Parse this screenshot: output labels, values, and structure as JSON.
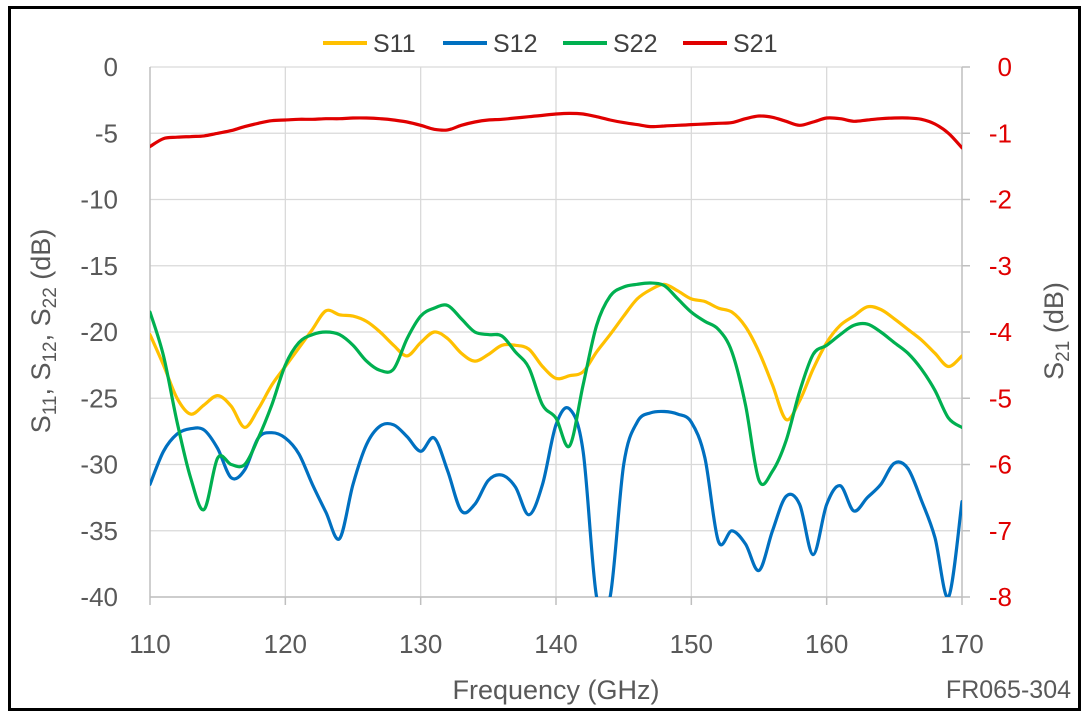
{
  "chart_data": {
    "type": "line",
    "xlabel": "Frequency (GHz)",
    "ylabel_left": {
      "base": "S",
      "parts": [
        [
          "11",
          ", S"
        ],
        [
          "12",
          ", S"
        ],
        [
          "22",
          " (dB)"
        ]
      ]
    },
    "ylabel_right": {
      "base": "S",
      "sub": "21",
      "suffix": " (dB)"
    },
    "xlim": [
      110,
      170
    ],
    "ylim_left": [
      -40,
      0
    ],
    "ylim_right": [
      -8,
      0
    ],
    "x_ticks": [
      110,
      120,
      130,
      140,
      150,
      160,
      170
    ],
    "y_ticks_left": [
      0,
      -5,
      -10,
      -15,
      -20,
      -25,
      -30,
      -35,
      -40
    ],
    "y_ticks_right": [
      0,
      -1,
      -2,
      -3,
      -4,
      -5,
      -6,
      -7,
      -8
    ],
    "grid": true,
    "legend_position": "top",
    "annotation": "FR065-304",
    "colors": {
      "S11": "#ffc000",
      "S12": "#0070c0",
      "S22": "#00b050",
      "S21": "#e00000",
      "right_axis": "#e00000",
      "text": "#595959"
    },
    "series": [
      {
        "name": "S11",
        "axis": "left",
        "x": [
          110,
          111,
          112,
          113,
          114,
          115,
          116,
          117,
          118,
          119,
          120,
          121,
          122,
          123,
          124,
          125,
          126,
          127,
          128,
          129,
          130,
          131,
          132,
          133,
          134,
          135,
          136,
          137,
          138,
          139,
          140,
          141,
          142,
          143,
          144,
          145,
          146,
          147,
          148,
          149,
          150,
          151,
          152,
          153,
          154,
          155,
          156,
          157,
          158,
          159,
          160,
          161,
          162,
          163,
          164,
          165,
          166,
          167,
          168,
          169,
          170
        ],
        "y": [
          -20.2,
          -22.5,
          -25,
          -26.2,
          -25.5,
          -24.8,
          -25.6,
          -27.2,
          -25.8,
          -24,
          -22.6,
          -21.2,
          -19.8,
          -18.4,
          -18.7,
          -18.8,
          -19.2,
          -20,
          -21,
          -21.8,
          -20.8,
          -20,
          -20.5,
          -21.6,
          -22.2,
          -21.7,
          -21,
          -21,
          -21.3,
          -22.6,
          -23.5,
          -23.3,
          -23,
          -21.5,
          -20.2,
          -18.8,
          -17.5,
          -16.8,
          -16.4,
          -16.9,
          -17.5,
          -17.7,
          -18.2,
          -18.5,
          -19.6,
          -21.5,
          -24,
          -26.6,
          -25.2,
          -22.8,
          -20.8,
          -19.5,
          -18.8,
          -18.1,
          -18.3,
          -19,
          -19.8,
          -20.6,
          -21.6,
          -22.6,
          -21.8
        ]
      },
      {
        "name": "S12",
        "axis": "left",
        "x": [
          110,
          111,
          112,
          113,
          114,
          115,
          116,
          117,
          118,
          119,
          120,
          121,
          122,
          123,
          124,
          125,
          126,
          127,
          128,
          129,
          130,
          131,
          132,
          133,
          134,
          135,
          136,
          137,
          138,
          139,
          140,
          141,
          142,
          143,
          144,
          145,
          146,
          147,
          148,
          149,
          150,
          151,
          152,
          153,
          154,
          155,
          156,
          157,
          158,
          159,
          160,
          161,
          162,
          163,
          164,
          165,
          166,
          167,
          168,
          169,
          170
        ],
        "y": [
          -31.5,
          -29,
          -27.7,
          -27.3,
          -27.4,
          -28.8,
          -31,
          -30.4,
          -28,
          -27.6,
          -28,
          -29.2,
          -31.5,
          -33.6,
          -35.6,
          -31.5,
          -28.5,
          -27.1,
          -27,
          -27.9,
          -29,
          -28,
          -30.5,
          -33.5,
          -33,
          -31.2,
          -30.8,
          -31.7,
          -33.8,
          -31.5,
          -27,
          -25.8,
          -29,
          -40,
          -40,
          -30,
          -26.8,
          -26.1,
          -26,
          -26.2,
          -26.8,
          -29.5,
          -35.8,
          -35,
          -36,
          -38,
          -35,
          -32.4,
          -33,
          -36.8,
          -33,
          -31.6,
          -33.5,
          -32.5,
          -31.5,
          -29.9,
          -30.3,
          -32.7,
          -35.5,
          -40,
          -32.8
        ]
      },
      {
        "name": "S22",
        "axis": "left",
        "x": [
          110,
          111,
          112,
          113,
          114,
          115,
          116,
          117,
          118,
          119,
          120,
          121,
          122,
          123,
          124,
          125,
          126,
          127,
          128,
          129,
          130,
          131,
          132,
          133,
          134,
          135,
          136,
          137,
          138,
          139,
          140,
          141,
          142,
          143,
          144,
          145,
          146,
          147,
          148,
          149,
          150,
          151,
          152,
          153,
          154,
          155,
          156,
          157,
          158,
          159,
          160,
          161,
          162,
          163,
          164,
          165,
          166,
          167,
          168,
          169,
          170
        ],
        "y": [
          -18.5,
          -21.8,
          -26.8,
          -31,
          -33.4,
          -29.5,
          -30,
          -30,
          -28,
          -25.5,
          -22.5,
          -20.8,
          -20.2,
          -20,
          -20.2,
          -21,
          -22.2,
          -22.9,
          -22.8,
          -20.5,
          -18.8,
          -18.2,
          -18,
          -19,
          -20,
          -20.2,
          -20.3,
          -21.5,
          -22.7,
          -25.5,
          -26.5,
          -28.6,
          -24,
          -19.5,
          -17.3,
          -16.6,
          -16.4,
          -16.3,
          -16.5,
          -17.5,
          -18.5,
          -19.2,
          -19.8,
          -21.5,
          -25.5,
          -31.2,
          -30.5,
          -28.2,
          -24.5,
          -21.7,
          -21,
          -20.2,
          -19.5,
          -19.4,
          -20,
          -20.8,
          -21.6,
          -22.8,
          -24.4,
          -26.5,
          -27.2
        ]
      },
      {
        "name": "S21",
        "axis": "right",
        "x": [
          110,
          111,
          112,
          113,
          114,
          115,
          116,
          117,
          118,
          119,
          120,
          121,
          122,
          123,
          124,
          125,
          126,
          127,
          128,
          129,
          130,
          131,
          132,
          133,
          134,
          135,
          136,
          137,
          138,
          139,
          140,
          141,
          142,
          143,
          144,
          145,
          146,
          147,
          148,
          149,
          150,
          151,
          152,
          153,
          154,
          155,
          156,
          157,
          158,
          159,
          160,
          161,
          162,
          163,
          164,
          165,
          166,
          167,
          168,
          169,
          170
        ],
        "y": [
          -1.2,
          -1.08,
          -1.06,
          -1.05,
          -1.04,
          -1.0,
          -0.96,
          -0.9,
          -0.85,
          -0.81,
          -0.8,
          -0.79,
          -0.79,
          -0.78,
          -0.78,
          -0.77,
          -0.77,
          -0.78,
          -0.8,
          -0.83,
          -0.88,
          -0.94,
          -0.95,
          -0.88,
          -0.83,
          -0.8,
          -0.79,
          -0.77,
          -0.75,
          -0.73,
          -0.71,
          -0.7,
          -0.71,
          -0.75,
          -0.8,
          -0.84,
          -0.87,
          -0.9,
          -0.89,
          -0.88,
          -0.87,
          -0.86,
          -0.85,
          -0.84,
          -0.78,
          -0.74,
          -0.76,
          -0.82,
          -0.88,
          -0.83,
          -0.77,
          -0.78,
          -0.82,
          -0.8,
          -0.78,
          -0.77,
          -0.77,
          -0.79,
          -0.86,
          -1.0,
          -1.22
        ]
      }
    ]
  }
}
